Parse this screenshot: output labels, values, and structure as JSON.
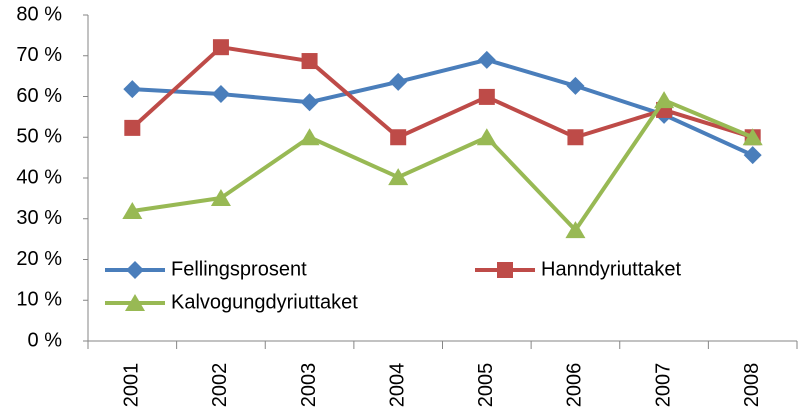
{
  "chart_data": {
    "type": "line",
    "categories": [
      "2001",
      "2002",
      "2003",
      "2004",
      "2005",
      "2006",
      "2007",
      "2008"
    ],
    "series": [
      {
        "name": "Fellingsprosent",
        "color": "#4a7ebb",
        "marker": "diamond",
        "values": [
          61.8,
          60.6,
          58.6,
          63.6,
          69,
          62.6,
          55.5,
          45.6
        ]
      },
      {
        "name": "Hanndyriuttaket",
        "color": "#be4b48",
        "marker": "square",
        "values": [
          52.3,
          72.1,
          68.7,
          50,
          59.9,
          50,
          56.7,
          50
        ]
      },
      {
        "name": "Kalvogungdyriuttaket",
        "color": "#98b954",
        "marker": "triangle",
        "values": [
          31.9,
          35.1,
          50,
          40.2,
          50,
          27.2,
          59.1,
          50
        ]
      }
    ],
    "ylim": [
      0,
      80
    ],
    "yticks": [
      {
        "value": 0,
        "label": "0 %"
      },
      {
        "value": 10,
        "label": "10 %"
      },
      {
        "value": 20,
        "label": "20 %"
      },
      {
        "value": 30,
        "label": "30 %"
      },
      {
        "value": 40,
        "label": "40 %"
      },
      {
        "value": 50,
        "label": "50 %"
      },
      {
        "value": 60,
        "label": "60 %"
      },
      {
        "value": 70,
        "label": "70 %"
      },
      {
        "value": 80,
        "label": "80 %"
      }
    ],
    "grid": false,
    "legend": "lower left"
  }
}
